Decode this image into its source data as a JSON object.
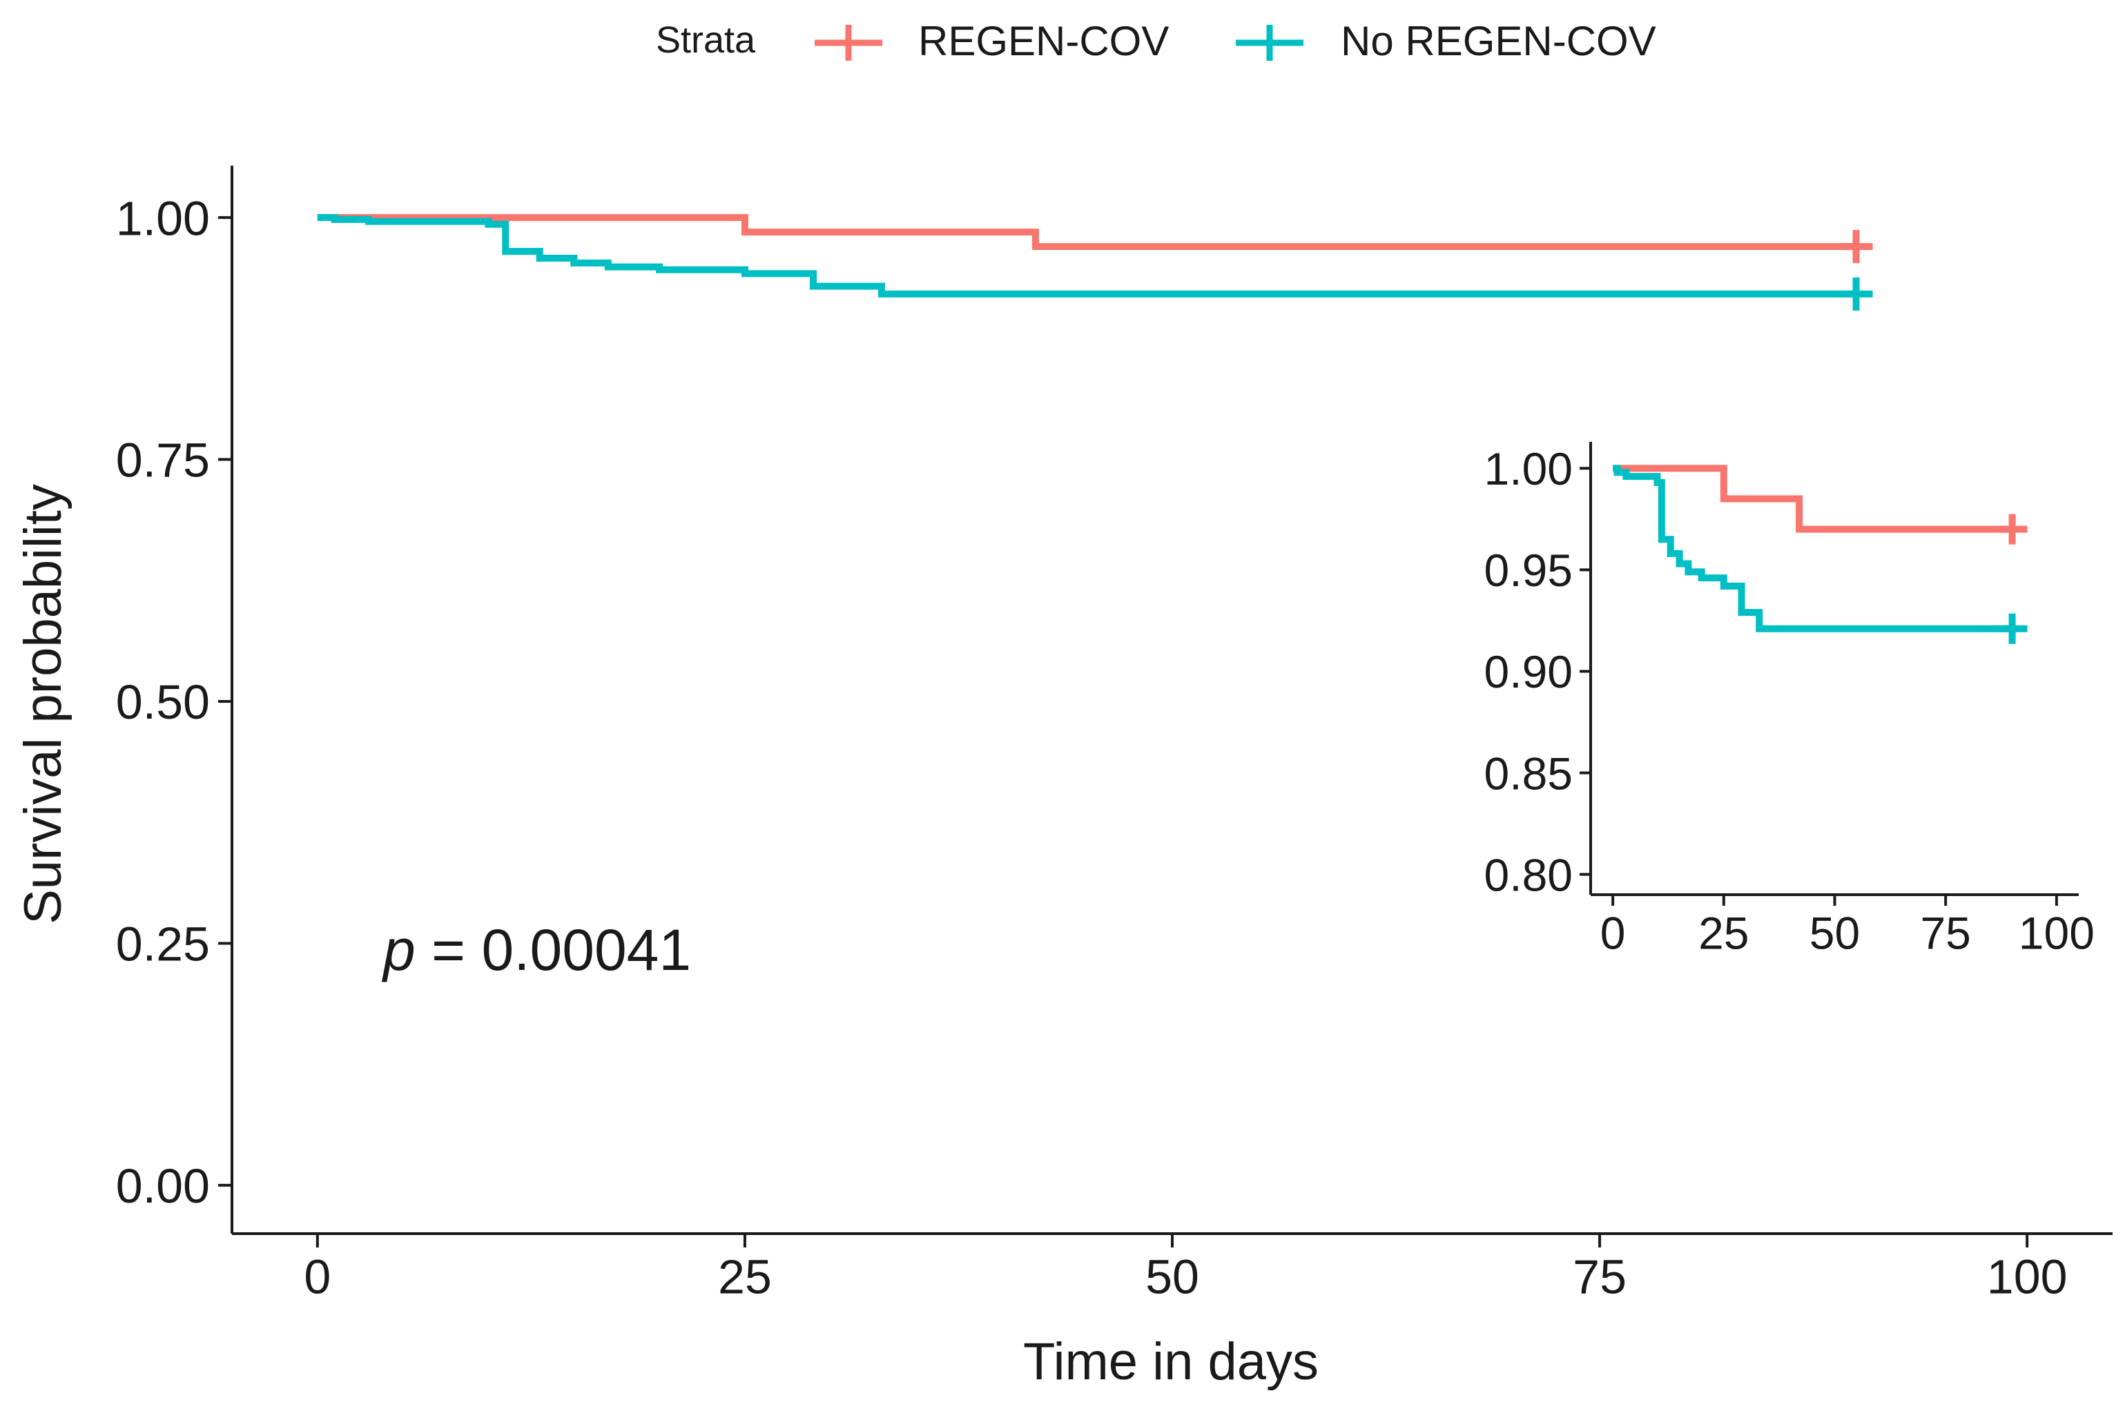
{
  "legend": {
    "title": "Strata",
    "items": [
      {
        "label": "REGEN-COV",
        "color": "#F8766D"
      },
      {
        "label": "No REGEN-COV",
        "color": "#00BFC4"
      }
    ]
  },
  "chart_data": [
    {
      "type": "line",
      "subtype": "kaplan-meier-step",
      "title": "",
      "xlabel": "Time in days",
      "ylabel": "Survival probability",
      "xlim": [
        -5,
        105
      ],
      "ylim": [
        -0.05,
        1.05
      ],
      "xticks": [
        0,
        25,
        50,
        75,
        100
      ],
      "xtick_labels": [
        "0",
        "25",
        "50",
        "75",
        "100"
      ],
      "yticks": [
        0,
        0.25,
        0.5,
        0.75,
        1.0
      ],
      "ytick_labels": [
        "0.00",
        "0.25",
        "0.50",
        "0.75",
        "1.00"
      ],
      "grid": false,
      "legend_position": "top",
      "annotation": {
        "italic": "p",
        "rest": " = 0.00041"
      },
      "series": [
        {
          "name": "REGEN-COV",
          "color": "#F8766D",
          "x": [
            0,
            25,
            42,
            90
          ],
          "y": [
            1.0,
            0.985,
            0.97,
            0.97
          ],
          "censor_x": [
            90
          ]
        },
        {
          "name": "No REGEN-COV",
          "color": "#00BFC4",
          "x": [
            0,
            1,
            3,
            10,
            11,
            13,
            15,
            17,
            20,
            25,
            29,
            33,
            90
          ],
          "y": [
            1.0,
            0.998,
            0.996,
            0.993,
            0.965,
            0.958,
            0.953,
            0.949,
            0.946,
            0.942,
            0.929,
            0.921,
            0.921
          ],
          "censor_x": [
            90
          ]
        }
      ]
    },
    {
      "type": "line",
      "subtype": "kaplan-meier-step-inset",
      "title": "",
      "xlabel": "",
      "ylabel": "",
      "xlim": [
        -5,
        105
      ],
      "ylim": [
        0.79,
        1.011
      ],
      "xticks": [
        0,
        25,
        50,
        75,
        100
      ],
      "xtick_labels": [
        "0",
        "25",
        "50",
        "75",
        "100"
      ],
      "yticks": [
        0.8,
        0.85,
        0.9,
        0.95,
        1.0
      ],
      "ytick_labels": [
        "0.80",
        "0.85",
        "0.90",
        "0.95",
        "1.00"
      ],
      "grid": false,
      "placement": "inset right of main plot",
      "series": [
        {
          "name": "REGEN-COV",
          "color": "#F8766D",
          "x": [
            0,
            25,
            42,
            90
          ],
          "y": [
            1.0,
            0.985,
            0.97,
            0.97
          ],
          "censor_x": [
            90
          ]
        },
        {
          "name": "No REGEN-COV",
          "color": "#00BFC4",
          "x": [
            0,
            1,
            3,
            10,
            11,
            13,
            15,
            17,
            20,
            25,
            29,
            33,
            90
          ],
          "y": [
            1.0,
            0.998,
            0.996,
            0.993,
            0.965,
            0.958,
            0.953,
            0.949,
            0.946,
            0.942,
            0.929,
            0.921,
            0.921
          ],
          "censor_x": [
            90
          ]
        }
      ]
    }
  ]
}
